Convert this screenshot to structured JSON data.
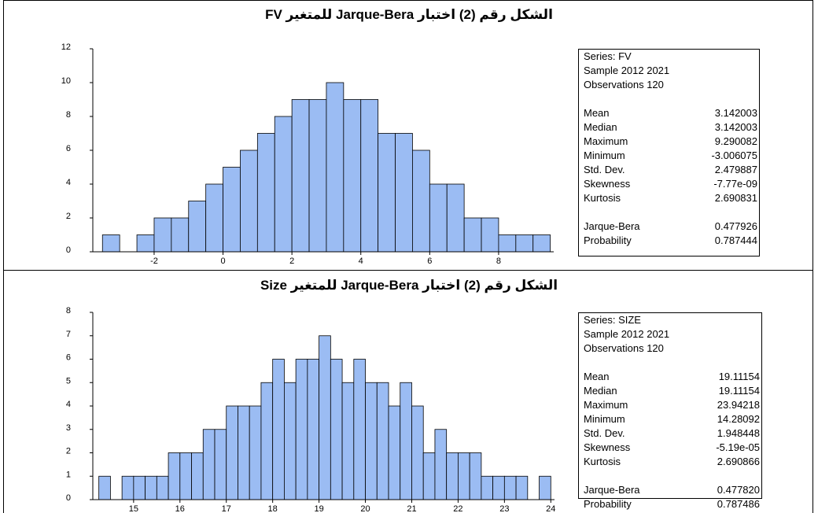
{
  "chart_data": [
    {
      "type": "histogram",
      "title": "الشكل رقم (2) اختبار Jarque-Bera للمتغير FV",
      "color": "#9bbcf3",
      "bins": [
        -3.5,
        -3,
        -2.5,
        -2,
        -1.5,
        -1,
        -0.5,
        0,
        0.5,
        1,
        1.5,
        2,
        2.5,
        3,
        3.5,
        4,
        4.5,
        5,
        5.5,
        6,
        6.5,
        7,
        7.5,
        8,
        8.5,
        9,
        9.5
      ],
      "values": [
        1,
        0,
        1,
        2,
        2,
        3,
        4,
        5,
        6,
        7,
        8,
        9,
        9,
        10,
        9,
        9,
        7,
        7,
        6,
        4,
        4,
        2,
        2,
        1,
        1,
        1
      ],
      "xlim": [
        -3.78,
        9.6
      ],
      "xticks": [
        -2,
        0,
        2,
        4,
        6,
        8
      ],
      "ylim": [
        0,
        12
      ],
      "yticks": [
        0,
        2,
        4,
        6,
        8,
        10,
        12
      ],
      "stats": {
        "series": "Series: FV",
        "sample": "Sample 2012 2021",
        "observations": "Observations 120",
        "rows": [
          [
            "Mean",
            "3.142003"
          ],
          [
            "Median",
            "3.142003"
          ],
          [
            "Maximum",
            "9.290082"
          ],
          [
            "Minimum",
            "-3.006075"
          ],
          [
            "Std. Dev.",
            "2.479887"
          ],
          [
            "Skewness",
            "-7.77e-09"
          ],
          [
            "Kurtosis",
            "2.690831"
          ]
        ],
        "tests": [
          [
            "Jarque-Bera",
            "0.477926"
          ],
          [
            "Probability",
            "0.787444"
          ]
        ]
      }
    },
    {
      "type": "histogram",
      "title": "الشكل رقم (2) اختبار Jarque-Bera للمتغير Size",
      "color": "#9bbcf3",
      "bins": [
        14.25,
        14.5,
        14.75,
        15,
        15.25,
        15.5,
        15.75,
        16,
        16.25,
        16.5,
        16.75,
        17,
        17.25,
        17.5,
        17.75,
        18,
        18.25,
        18.5,
        18.75,
        19,
        19.25,
        19.5,
        19.75,
        20,
        20.25,
        20.5,
        20.75,
        21,
        21.25,
        21.5,
        21.75,
        22,
        22.25,
        22.5,
        22.75,
        23,
        23.25,
        23.5,
        23.75,
        24
      ],
      "values": [
        1,
        0,
        1,
        1,
        1,
        1,
        2,
        2,
        2,
        3,
        3,
        4,
        4,
        4,
        5,
        6,
        5,
        6,
        6,
        7,
        6,
        5,
        6,
        5,
        5,
        4,
        5,
        4,
        2,
        3,
        2,
        2,
        2,
        1,
        1,
        1,
        1,
        0,
        1
      ],
      "xlim": [
        14.12,
        24.08
      ],
      "xticks": [
        15,
        16,
        17,
        18,
        19,
        20,
        21,
        22,
        23,
        24
      ],
      "ylim": [
        0,
        8
      ],
      "yticks": [
        0,
        1,
        2,
        3,
        4,
        5,
        6,
        7,
        8
      ],
      "stats": {
        "series": "Series: SIZE",
        "sample": "Sample 2012 2021",
        "observations": "Observations 120",
        "rows": [
          [
            "Mean",
            "19.11154"
          ],
          [
            "Median",
            "19.11154"
          ],
          [
            "Maximum",
            "23.94218"
          ],
          [
            "Minimum",
            "14.28092"
          ],
          [
            "Std. Dev.",
            "1.948448"
          ],
          [
            "Skewness",
            "-5.19e-05"
          ],
          [
            "Kurtosis",
            "2.690866"
          ]
        ],
        "tests": [
          [
            "Jarque-Bera",
            "0.477820"
          ],
          [
            "Probability",
            "0.787486"
          ]
        ]
      }
    }
  ]
}
